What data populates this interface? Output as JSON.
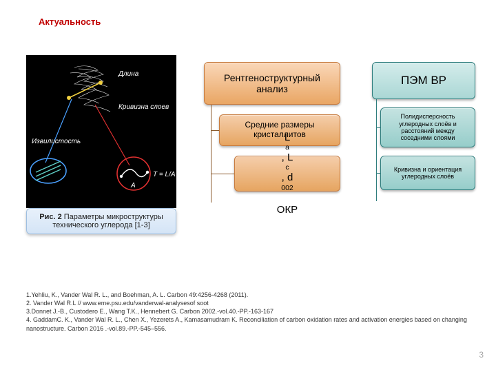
{
  "title": "Актуальность",
  "figure": {
    "caption_prefix": "Рис. 2",
    "caption_rest": "   Параметры микроструктуры технического углерода [1-3]",
    "ann_length": "Длина",
    "ann_curvature": "Кривизна слоев",
    "ann_tortuosity": "Извилистость",
    "tla": "T = L/A",
    "A": "A",
    "colors": {
      "bg": "#000000",
      "white": "#ffffff",
      "red": "#e03030",
      "blue": "#4aa0ff",
      "yellow": "#f0d040",
      "cyan": "#60d0c8"
    }
  },
  "smartart_left": {
    "lvl1": "Рентгеноструктурный анализ",
    "lvl2": "Средние размеры кристаллитов",
    "lvl3_html": "L<sub>a</sub>, L<sub>c</sub>, d<sub>002</sub><br>ОКР",
    "colors": {
      "fill_top": "#fad7b8",
      "fill_bot": "#e9a664",
      "border": "#c77b3e"
    }
  },
  "smartart_right": {
    "lvl1": "ПЭМ ВР",
    "lvl2": "Полидисперсность углеродных слоёв и расстояний между соседними слоями",
    "lvl3": "Кривизна и ориентация углеродных слоёв",
    "colors": {
      "fill_top": "#d4eceb",
      "fill_bot": "#aad7d5",
      "border": "#2e7d7d"
    }
  },
  "refs": {
    "r1": "1.Yehliu, K., Vander Wal R. L., and Boehman, A. L.  Carbon 49:4256-4268 (2011).",
    "r2": "2. Vander Wal R.L // www.eme.psu.edu/vanderwal-analysesof soot",
    "r3": "3.Donnet J.-B., Custodero E., Wang T.K., Hennebert G. Carbon 2002.-vol.40.-PP.-163-167",
    "r4": "4. GaddamC. K., Vander Wal R. L., Chen  X., Yezerets  A., Kamasamudram  K. Reconciliation of carbon oxidation rates and activation energies based on changing nanostructure. Carbon 2016 .-vol.89.-PP.-545–556."
  },
  "pagenum": "3",
  "layout": {
    "col1": {
      "box1_h": 62,
      "box2_h": 46,
      "box3_h": 52,
      "gap": 14,
      "indent2": 22,
      "indent3": 44
    },
    "col2": {
      "box1_h": 54,
      "box2_h": 58,
      "box3_h": 50,
      "gap": 12,
      "indent2": 12,
      "indent3": 12
    }
  }
}
